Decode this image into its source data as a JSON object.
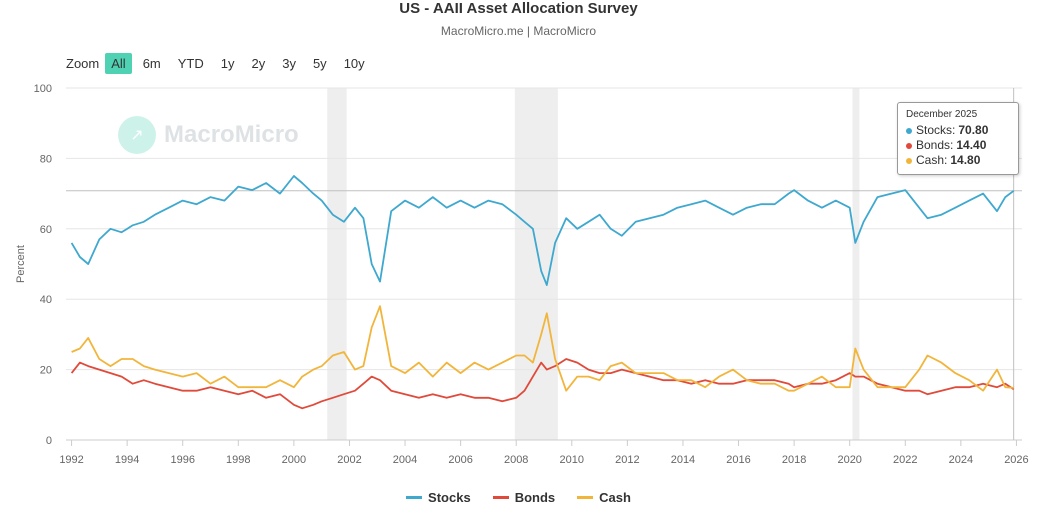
{
  "title": "US - AAII Asset Allocation Survey",
  "subtitle": "MacroMicro.me | MacroMicro",
  "watermark": "MacroMicro",
  "zoom": {
    "label": "Zoom",
    "buttons": [
      "All",
      "6m",
      "YTD",
      "1y",
      "2y",
      "3y",
      "5y",
      "10y"
    ],
    "active": "All"
  },
  "tooltip": {
    "date": "December 2025",
    "rows": [
      {
        "label": "Stocks:",
        "value": "70.80",
        "color": "#3ea8cf"
      },
      {
        "label": "Bonds:",
        "value": "14.40",
        "color": "#e04a3a"
      },
      {
        "label": "Cash:",
        "value": "14.80",
        "color": "#f2b53c"
      }
    ]
  },
  "colors": {
    "stocks": "#3ea8cf",
    "bonds": "#e04a3a",
    "cash": "#f2b53c",
    "recession": "#eeeeee"
  },
  "chart_data": {
    "type": "line",
    "title": "US - AAII Asset Allocation Survey",
    "xlabel": "",
    "ylabel": "Percent",
    "xlim": [
      1991.8,
      2026.2
    ],
    "ylim": [
      0,
      100
    ],
    "yticks": [
      0,
      20,
      40,
      60,
      80,
      100
    ],
    "xticks": [
      1992,
      1994,
      1996,
      1998,
      2000,
      2002,
      2004,
      2006,
      2008,
      2010,
      2012,
      2014,
      2016,
      2018,
      2020,
      2022,
      2024,
      2026
    ],
    "recessions": [
      [
        2001.2,
        2001.9
      ],
      [
        2007.95,
        2009.5
      ],
      [
        2020.1,
        2020.35
      ]
    ],
    "reference_line": 70.8,
    "series": [
      {
        "name": "Stocks",
        "x": [
          1992.0,
          1992.3,
          1992.6,
          1993.0,
          1993.4,
          1993.8,
          1994.2,
          1994.6,
          1995.0,
          1995.5,
          1996.0,
          1996.5,
          1997.0,
          1997.5,
          1998.0,
          1998.5,
          1999.0,
          1999.5,
          2000.0,
          2000.3,
          2000.7,
          2001.0,
          2001.4,
          2001.8,
          2002.2,
          2002.5,
          2002.8,
          2003.1,
          2003.5,
          2004.0,
          2004.5,
          2005.0,
          2005.5,
          2006.0,
          2006.5,
          2007.0,
          2007.5,
          2008.0,
          2008.3,
          2008.6,
          2008.9,
          2009.1,
          2009.4,
          2009.8,
          2010.2,
          2010.6,
          2011.0,
          2011.4,
          2011.8,
          2012.3,
          2012.8,
          2013.3,
          2013.8,
          2014.3,
          2014.8,
          2015.3,
          2015.8,
          2016.3,
          2016.8,
          2017.3,
          2017.8,
          2018.0,
          2018.5,
          2019.0,
          2019.5,
          2020.0,
          2020.2,
          2020.5,
          2021.0,
          2021.5,
          2022.0,
          2022.5,
          2022.8,
          2023.3,
          2023.8,
          2024.3,
          2024.8,
          2025.3,
          2025.6,
          2025.9
        ],
        "values": [
          56,
          52,
          50,
          57,
          60,
          59,
          61,
          62,
          64,
          66,
          68,
          67,
          69,
          68,
          72,
          71,
          73,
          70,
          75,
          73,
          70,
          68,
          64,
          62,
          66,
          63,
          50,
          45,
          65,
          68,
          66,
          69,
          66,
          68,
          66,
          68,
          67,
          64,
          62,
          60,
          48,
          44,
          56,
          63,
          60,
          62,
          64,
          60,
          58,
          62,
          63,
          64,
          66,
          67,
          68,
          66,
          64,
          66,
          67,
          67,
          70,
          71,
          68,
          66,
          68,
          66,
          56,
          62,
          69,
          70,
          71,
          66,
          63,
          64,
          66,
          68,
          70,
          65,
          69,
          70.8
        ]
      },
      {
        "name": "Bonds",
        "x": [
          1992.0,
          1992.3,
          1992.6,
          1993.0,
          1993.4,
          1993.8,
          1994.2,
          1994.6,
          1995.0,
          1995.5,
          1996.0,
          1996.5,
          1997.0,
          1997.5,
          1998.0,
          1998.5,
          1999.0,
          1999.5,
          2000.0,
          2000.3,
          2000.7,
          2001.0,
          2001.4,
          2001.8,
          2002.2,
          2002.5,
          2002.8,
          2003.1,
          2003.5,
          2004.0,
          2004.5,
          2005.0,
          2005.5,
          2006.0,
          2006.5,
          2007.0,
          2007.5,
          2008.0,
          2008.3,
          2008.6,
          2008.9,
          2009.1,
          2009.4,
          2009.8,
          2010.2,
          2010.6,
          2011.0,
          2011.4,
          2011.8,
          2012.3,
          2012.8,
          2013.3,
          2013.8,
          2014.3,
          2014.8,
          2015.3,
          2015.8,
          2016.3,
          2016.8,
          2017.3,
          2017.8,
          2018.0,
          2018.5,
          2019.0,
          2019.5,
          2020.0,
          2020.2,
          2020.5,
          2021.0,
          2021.5,
          2022.0,
          2022.5,
          2022.8,
          2023.3,
          2023.8,
          2024.3,
          2024.8,
          2025.3,
          2025.6,
          2025.9
        ],
        "values": [
          19,
          22,
          21,
          20,
          19,
          18,
          16,
          17,
          16,
          15,
          14,
          14,
          15,
          14,
          13,
          14,
          12,
          13,
          10,
          9,
          10,
          11,
          12,
          13,
          14,
          16,
          18,
          17,
          14,
          13,
          12,
          13,
          12,
          13,
          12,
          12,
          11,
          12,
          14,
          18,
          22,
          20,
          21,
          23,
          22,
          20,
          19,
          19,
          20,
          19,
          18,
          17,
          17,
          16,
          17,
          16,
          16,
          17,
          17,
          17,
          16,
          15,
          16,
          16,
          17,
          19,
          18,
          18,
          16,
          15,
          14,
          14,
          13,
          14,
          15,
          15,
          16,
          15,
          16,
          14.4
        ]
      },
      {
        "name": "Cash",
        "x": [
          1992.0,
          1992.3,
          1992.6,
          1993.0,
          1993.4,
          1993.8,
          1994.2,
          1994.6,
          1995.0,
          1995.5,
          1996.0,
          1996.5,
          1997.0,
          1997.5,
          1998.0,
          1998.5,
          1999.0,
          1999.5,
          2000.0,
          2000.3,
          2000.7,
          2001.0,
          2001.4,
          2001.8,
          2002.2,
          2002.5,
          2002.8,
          2003.1,
          2003.5,
          2004.0,
          2004.5,
          2005.0,
          2005.5,
          2006.0,
          2006.5,
          2007.0,
          2007.5,
          2008.0,
          2008.3,
          2008.6,
          2008.9,
          2009.1,
          2009.4,
          2009.8,
          2010.2,
          2010.6,
          2011.0,
          2011.4,
          2011.8,
          2012.3,
          2012.8,
          2013.3,
          2013.8,
          2014.3,
          2014.8,
          2015.3,
          2015.8,
          2016.3,
          2016.8,
          2017.3,
          2017.8,
          2018.0,
          2018.5,
          2019.0,
          2019.5,
          2020.0,
          2020.2,
          2020.5,
          2021.0,
          2021.5,
          2022.0,
          2022.5,
          2022.8,
          2023.3,
          2023.8,
          2024.3,
          2024.8,
          2025.3,
          2025.6,
          2025.9
        ],
        "values": [
          25,
          26,
          29,
          23,
          21,
          23,
          23,
          21,
          20,
          19,
          18,
          19,
          16,
          18,
          15,
          15,
          15,
          17,
          15,
          18,
          20,
          21,
          24,
          25,
          20,
          21,
          32,
          38,
          21,
          19,
          22,
          18,
          22,
          19,
          22,
          20,
          22,
          24,
          24,
          22,
          30,
          36,
          23,
          14,
          18,
          18,
          17,
          21,
          22,
          19,
          19,
          19,
          17,
          17,
          15,
          18,
          20,
          17,
          16,
          16,
          14,
          14,
          16,
          18,
          15,
          15,
          26,
          20,
          15,
          15,
          15,
          20,
          24,
          22,
          19,
          17,
          14,
          20,
          15,
          14.8
        ]
      }
    ]
  }
}
